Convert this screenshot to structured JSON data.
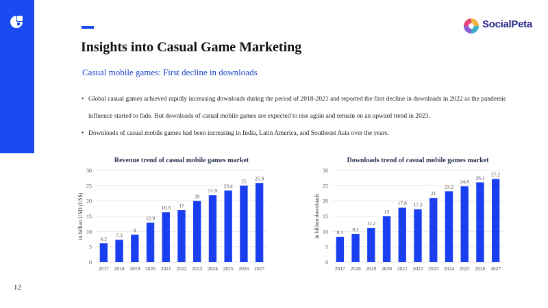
{
  "slide": {
    "title": "Insights into Casual Game Marketing",
    "subtitle": "Casual mobile games: First decline in downloads",
    "page_number": "12",
    "brand": "SocialPeta",
    "accent_color": "#1a4bf0"
  },
  "bullets": [
    "Global casual games achieved rapidly increasing downloads during the period of 2018-2021 and reported the first decline in downloads in 2022 as the pandemic influence started to fade. But downloads of casual mobile games are expected to rise again and remain on an upward trend in 2023.",
    "Downloads of casual mobile games had been increasing in India, Latin America, and Southeast Asia over the years."
  ],
  "chart_data": [
    {
      "type": "bar",
      "title": "Revenue trend of casual mobile games market",
      "ylabel": "in billion USD (US$)",
      "xlabel": "",
      "categories": [
        "2017",
        "2018",
        "2019",
        "2020",
        "2021",
        "2022",
        "2023",
        "2024",
        "2025",
        "2026",
        "2027"
      ],
      "values": [
        6.2,
        7.3,
        9,
        12.9,
        16.3,
        17,
        20,
        21.9,
        23.4,
        25,
        25.9
      ],
      "ylim": [
        0,
        30
      ],
      "yticks": [
        0,
        5,
        10,
        15,
        20,
        25,
        30
      ],
      "color": "#1a3ff0",
      "grid": true
    },
    {
      "type": "bar",
      "title": "Downloads trend of casual mobile games market",
      "ylabel": "in billion downloads",
      "xlabel": "",
      "categories": [
        "2017",
        "2018",
        "2019",
        "2020",
        "2021",
        "2022",
        "2023",
        "2024",
        "2025",
        "2026",
        "2027"
      ],
      "values": [
        8.3,
        9.2,
        11.2,
        15,
        17.8,
        17.3,
        21,
        23.2,
        24.8,
        26.1,
        27.2
      ],
      "ylim": [
        0,
        30
      ],
      "yticks": [
        0,
        5,
        10,
        15,
        20,
        25,
        30
      ],
      "color": "#1a3ff0",
      "grid": true
    }
  ]
}
